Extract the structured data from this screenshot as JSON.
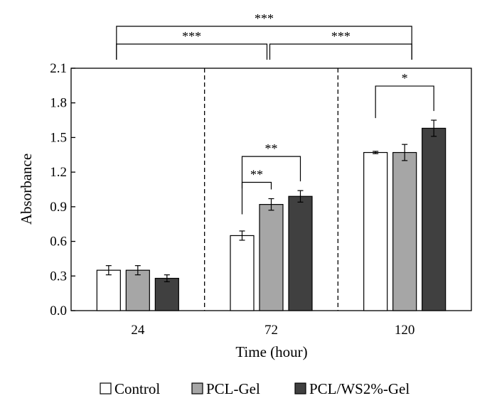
{
  "chart_data": {
    "type": "bar",
    "title": "",
    "xlabel": "Time (hour)",
    "ylabel": "Absorbance",
    "ylim": [
      0,
      2.1
    ],
    "yticks": [
      "0.0",
      "0.3",
      "0.6",
      "0.9",
      "1.2",
      "1.5",
      "1.8",
      "2.1"
    ],
    "categories": [
      "24",
      "72",
      "120"
    ],
    "grid": false,
    "legend_position": "bottom",
    "series": [
      {
        "name": "Control",
        "color": "#ffffff",
        "values": [
          0.35,
          0.65,
          1.37
        ],
        "errors": [
          0.04,
          0.04,
          0.01
        ]
      },
      {
        "name": "PCL-Gel",
        "color": "#a6a6a6",
        "values": [
          0.35,
          0.92,
          1.37
        ],
        "errors": [
          0.04,
          0.05,
          0.07
        ]
      },
      {
        "name": "PCL/WS2%-Gel",
        "color": "#404040",
        "values": [
          0.28,
          0.99,
          1.58
        ],
        "errors": [
          0.03,
          0.05,
          0.07
        ]
      }
    ],
    "significance": [
      {
        "label": "***",
        "from_category": 0,
        "to_category": 2,
        "level": 1
      },
      {
        "label": "***",
        "from_category": 0,
        "to_category": 1,
        "level": 0
      },
      {
        "label": "***",
        "from_category": 1,
        "to_category": 2,
        "level": 0
      },
      {
        "label": "**",
        "category": 1,
        "from_series": 0,
        "to_series": 2,
        "level": 1
      },
      {
        "label": "**",
        "category": 1,
        "from_series": 0,
        "to_series": 1,
        "level": 0
      },
      {
        "label": "*",
        "category": 2,
        "from_series": 0,
        "to_series": 2,
        "level": 0
      }
    ]
  }
}
